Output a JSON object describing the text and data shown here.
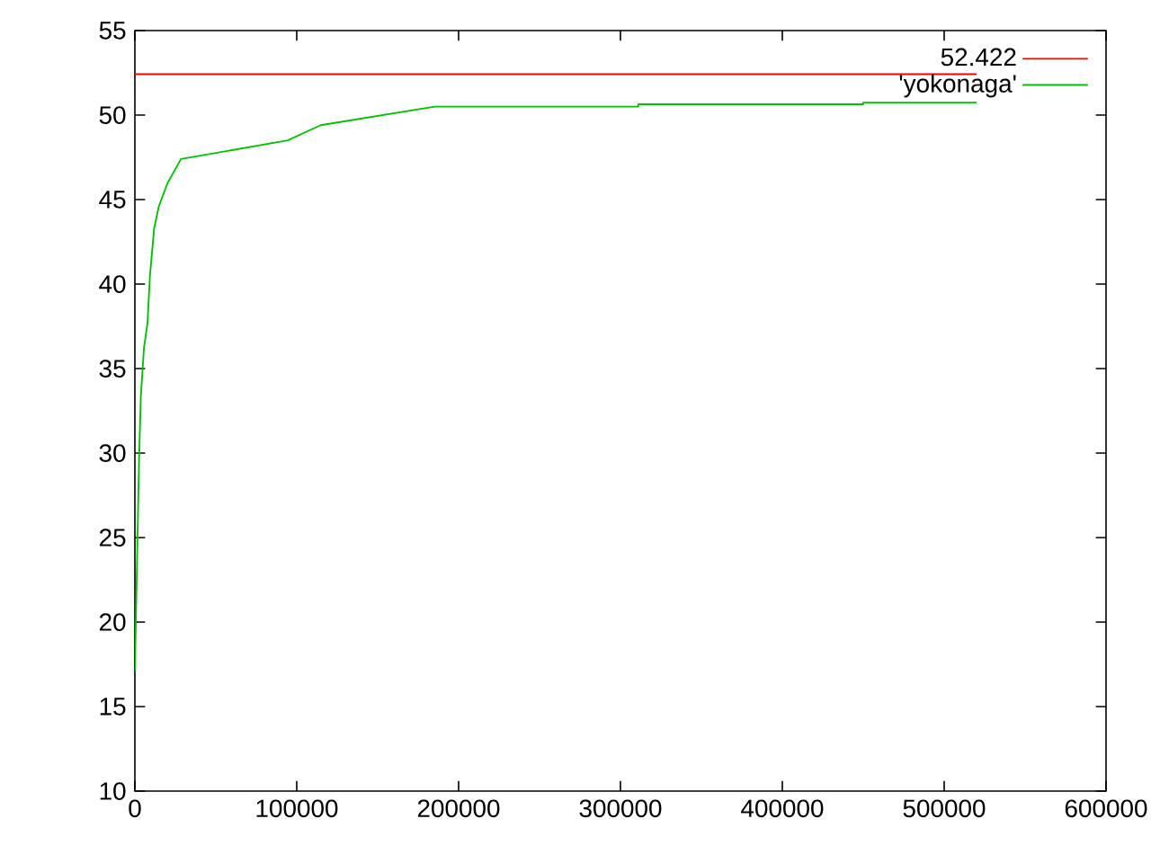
{
  "chart_data": {
    "type": "line",
    "xlim": [
      0,
      600000
    ],
    "ylim": [
      10,
      55
    ],
    "xticks": [
      0,
      100000,
      200000,
      300000,
      400000,
      500000,
      600000
    ],
    "yticks": [
      10,
      15,
      20,
      25,
      30,
      35,
      40,
      45,
      50,
      55
    ],
    "legend": "top right",
    "grid": false,
    "marker": "none",
    "line_style": "solid",
    "series": [
      {
        "name": "52.422",
        "color": "#ff0000",
        "x": [
          0,
          520000
        ],
        "values": [
          52.422,
          52.422
        ]
      },
      {
        "name": "'yokonaga'",
        "color": "#00c000",
        "x": [
          0,
          1800,
          2600,
          3700,
          5600,
          7800,
          9300,
          11900,
          14800,
          20300,
          28500,
          94400,
          114800,
          185200,
          311000,
          311000,
          450000,
          450000,
          520000
        ],
        "values": [
          17.1,
          25.8,
          29.7,
          33.4,
          36.2,
          37.7,
          40.5,
          43.3,
          44.6,
          46.0,
          47.4,
          48.5,
          49.4,
          50.5,
          50.5,
          50.64,
          50.64,
          50.74,
          50.74
        ]
      }
    ]
  }
}
